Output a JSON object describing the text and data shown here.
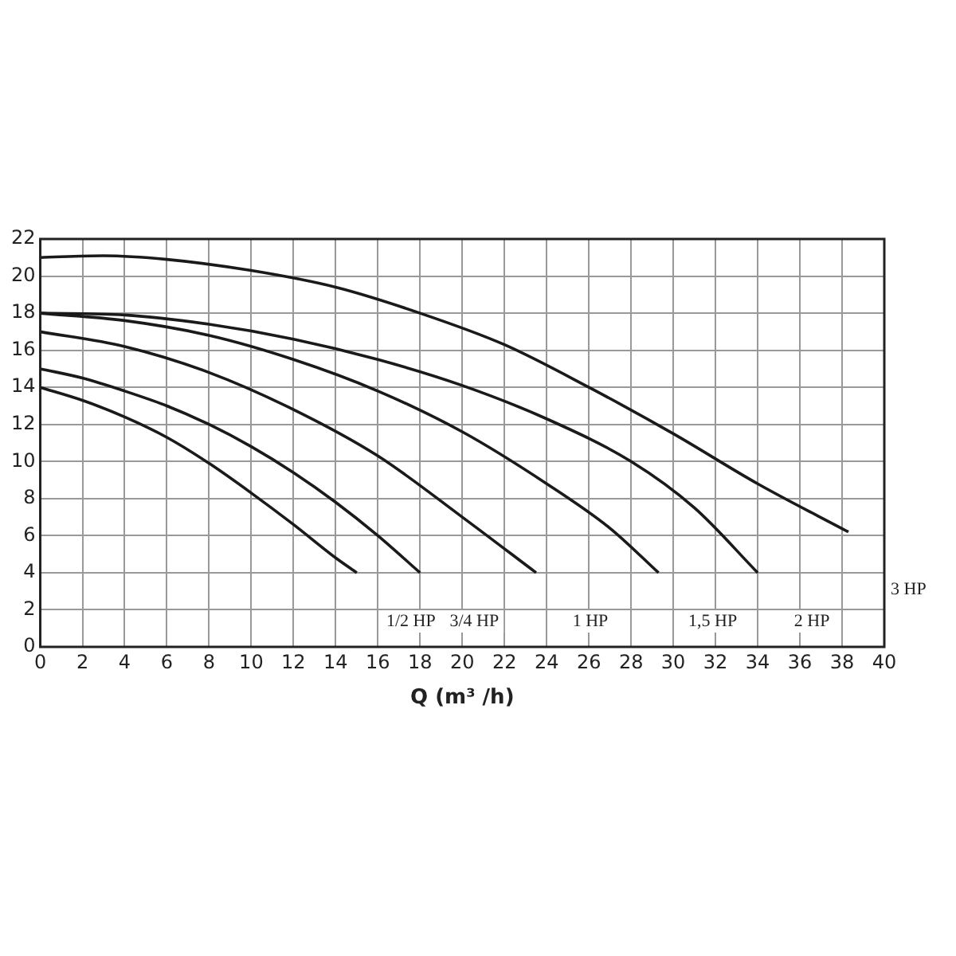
{
  "chart_data": {
    "type": "line",
    "xlabel": "Q (m³ /h)",
    "xlim": [
      0,
      40
    ],
    "xticks": [
      0,
      2,
      4,
      6,
      8,
      10,
      12,
      14,
      16,
      18,
      20,
      22,
      24,
      26,
      28,
      30,
      32,
      34,
      36,
      38,
      40
    ],
    "ylim": [
      0,
      22
    ],
    "yticks": [
      0,
      2,
      4,
      6,
      8,
      10,
      12,
      14,
      16,
      18,
      20,
      22
    ],
    "grid": true,
    "legend": false,
    "marker": "none",
    "line_style": "solid",
    "series": [
      {
        "name": "1/2 HP",
        "color": "#1a1a1a",
        "x": [
          0,
          2,
          4,
          6,
          8,
          10,
          12,
          14,
          15
        ],
        "values": [
          14,
          13.3,
          12.4,
          11.3,
          9.9,
          8.3,
          6.6,
          4.8,
          4
        ]
      },
      {
        "name": "3/4 HP",
        "color": "#1a1a1a",
        "x": [
          0,
          2,
          4,
          6,
          8,
          10,
          12,
          14,
          16,
          18
        ],
        "values": [
          15,
          14.5,
          13.8,
          13,
          12,
          10.8,
          9.4,
          7.8,
          6,
          4
        ]
      },
      {
        "name": "1 HP",
        "color": "#1a1a1a",
        "x": [
          0,
          4,
          8,
          12,
          16,
          20,
          23.5
        ],
        "values": [
          17,
          16.2,
          14.8,
          12.8,
          10.3,
          7,
          4
        ]
      },
      {
        "name": "1,5 HP",
        "color": "#1a1a1a",
        "x": [
          0,
          4,
          8,
          12,
          16,
          20,
          24,
          27,
          29.3
        ],
        "values": [
          18,
          17.6,
          16.8,
          15.5,
          13.8,
          11.6,
          8.8,
          6.4,
          4
        ]
      },
      {
        "name": "2 HP",
        "color": "#1a1a1a",
        "x": [
          0,
          4,
          8,
          12,
          16,
          20,
          24,
          28,
          31,
          34
        ],
        "values": [
          18,
          17.9,
          17.4,
          16.6,
          15.5,
          14.1,
          12.3,
          10,
          7.5,
          4
        ]
      },
      {
        "name": "3 HP",
        "color": "#1a1a1a",
        "x": [
          0,
          3,
          6,
          10,
          14,
          18,
          22,
          26,
          30,
          34,
          38.3
        ],
        "values": [
          21,
          21.1,
          20.9,
          20.3,
          19.4,
          18,
          16.3,
          14,
          11.5,
          8.8,
          6.2
        ]
      }
    ]
  }
}
